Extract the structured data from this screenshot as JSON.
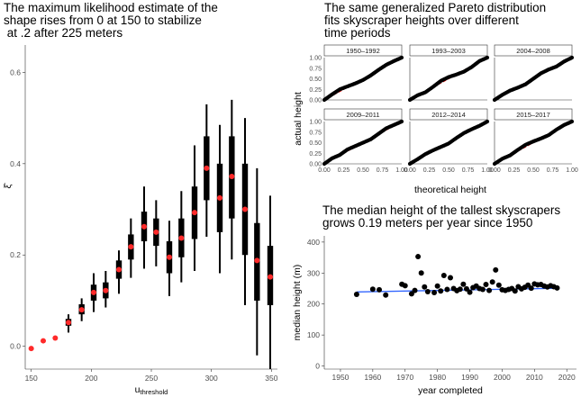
{
  "titles": {
    "left": "The maximum likelihood estimate of the\nshape rises from 0 at 150 to stabilize\n at .2 after 225 meters",
    "qq": "The same generalized Pareto distribution\nfits skyscraper heights over different\ntime periods",
    "median": "The median height of the tallest skyscrapers\ngrows 0.19 meters per year since 1950"
  },
  "colors": {
    "point": "#ff2a2a",
    "bar": "#000000",
    "qq_line": "#ff0000",
    "trend": "#3366ff"
  },
  "chart_data": [
    {
      "type": "scatter",
      "name": "shape-estimate",
      "xlabel_main": "u",
      "xlabel_sub": "threshold",
      "ylabel": "ξ̂",
      "xlim": [
        145,
        355
      ],
      "ylim": [
        -0.05,
        0.66
      ],
      "xticks": [
        150,
        200,
        250,
        300,
        350
      ],
      "yticks": [
        0.0,
        0.2,
        0.4,
        0.6
      ],
      "ytick_labels": [
        "0.0",
        "0.2",
        "0.4",
        "0.6"
      ],
      "points": [
        {
          "x": 150,
          "y": -0.005,
          "lo": null,
          "hi": null,
          "q1": null,
          "q3": null
        },
        {
          "x": 160,
          "y": 0.012,
          "lo": null,
          "hi": null,
          "q1": null,
          "q3": null
        },
        {
          "x": 170,
          "y": 0.018,
          "lo": null,
          "hi": null,
          "q1": null,
          "q3": null
        },
        {
          "x": 181,
          "y": 0.052,
          "lo": 0.03,
          "hi": 0.07,
          "q1": 0.045,
          "q3": 0.06
        },
        {
          "x": 192,
          "y": 0.08,
          "lo": 0.055,
          "hi": 0.105,
          "q1": 0.07,
          "q3": 0.092
        },
        {
          "x": 202,
          "y": 0.118,
          "lo": 0.075,
          "hi": 0.16,
          "q1": 0.1,
          "q3": 0.135
        },
        {
          "x": 212,
          "y": 0.122,
          "lo": 0.085,
          "hi": 0.165,
          "q1": 0.105,
          "q3": 0.14
        },
        {
          "x": 223,
          "y": 0.168,
          "lo": 0.115,
          "hi": 0.21,
          "q1": 0.148,
          "q3": 0.188
        },
        {
          "x": 233,
          "y": 0.218,
          "lo": 0.15,
          "hi": 0.28,
          "q1": 0.19,
          "q3": 0.245
        },
        {
          "x": 244,
          "y": 0.262,
          "lo": 0.17,
          "hi": 0.35,
          "q1": 0.23,
          "q3": 0.295
        },
        {
          "x": 254,
          "y": 0.25,
          "lo": 0.175,
          "hi": 0.32,
          "q1": 0.22,
          "q3": 0.28
        },
        {
          "x": 265,
          "y": 0.195,
          "lo": 0.11,
          "hi": 0.275,
          "q1": 0.16,
          "q3": 0.23
        },
        {
          "x": 275,
          "y": 0.237,
          "lo": 0.14,
          "hi": 0.34,
          "q1": 0.195,
          "q3": 0.28
        },
        {
          "x": 286,
          "y": 0.293,
          "lo": 0.165,
          "hi": 0.44,
          "q1": 0.235,
          "q3": 0.35
        },
        {
          "x": 296,
          "y": 0.39,
          "lo": 0.24,
          "hi": 0.53,
          "q1": 0.32,
          "q3": 0.46
        },
        {
          "x": 307,
          "y": 0.325,
          "lo": 0.16,
          "hi": 0.485,
          "q1": 0.25,
          "q3": 0.4
        },
        {
          "x": 317,
          "y": 0.372,
          "lo": 0.19,
          "hi": 0.54,
          "q1": 0.28,
          "q3": 0.46
        },
        {
          "x": 328,
          "y": 0.3,
          "lo": 0.09,
          "hi": 0.5,
          "q1": 0.2,
          "q3": 0.4
        },
        {
          "x": 338,
          "y": 0.188,
          "lo": -0.02,
          "hi": 0.39,
          "q1": 0.1,
          "q3": 0.27
        },
        {
          "x": 349,
          "y": 0.152,
          "lo": -0.05,
          "hi": 0.33,
          "q1": 0.09,
          "q3": 0.22
        }
      ]
    },
    {
      "type": "scatter",
      "name": "qq-facets",
      "xlabel": "theoretical height",
      "ylabel": "actual height",
      "xlim": [
        0,
        1
      ],
      "ylim": [
        0,
        1
      ],
      "xticks": [
        0.0,
        0.25,
        0.5,
        0.75,
        1.0
      ],
      "xtick_labels": [
        "0.00",
        "0.25",
        "0.50",
        "0.75",
        "1.00"
      ],
      "yticks": [
        0.0,
        0.25,
        0.5,
        0.75,
        1.0
      ],
      "ytick_labels": [
        "0.00",
        "0.25",
        "0.50",
        "0.75",
        "1.00"
      ],
      "panels": [
        {
          "label": "1950–1992",
          "wiggle": [
            0.0,
            0.03,
            0.05,
            0.02,
            -0.01,
            -0.03,
            -0.02,
            0.01,
            0.03,
            0.02,
            0.0
          ]
        },
        {
          "label": "1993–2003",
          "wiggle": [
            0.0,
            0.01,
            -0.02,
            0.01,
            0.05,
            0.04,
            0.0,
            -0.03,
            -0.02,
            0.02,
            0.0
          ]
        },
        {
          "label": "2004–2008",
          "wiggle": [
            0.0,
            0.02,
            0.02,
            -0.01,
            -0.03,
            0.0,
            0.03,
            0.02,
            -0.01,
            0.01,
            0.0
          ]
        },
        {
          "label": "2009–2011",
          "wiggle": [
            0.0,
            0.03,
            0.01,
            0.04,
            0.02,
            0.0,
            -0.02,
            0.01,
            0.04,
            0.02,
            0.0
          ]
        },
        {
          "label": "2012–2014",
          "wiggle": [
            0.0,
            0.01,
            0.03,
            0.02,
            0.0,
            -0.02,
            0.01,
            0.03,
            0.02,
            0.0,
            0.0
          ]
        },
        {
          "label": "2015–2017",
          "wiggle": [
            0.0,
            0.02,
            0.0,
            0.03,
            0.05,
            0.03,
            0.0,
            -0.02,
            0.01,
            0.02,
            0.0
          ]
        }
      ]
    },
    {
      "type": "scatter",
      "name": "median-height",
      "xlabel": "year completed",
      "ylabel": "median height (m)",
      "xlim": [
        1945,
        2023
      ],
      "ylim": [
        -10,
        420
      ],
      "xticks": [
        1950,
        1960,
        1970,
        1980,
        1990,
        2000,
        2010,
        2020
      ],
      "yticks": [
        0,
        100,
        200,
        300,
        400
      ],
      "trend": {
        "x": [
          1955,
          2017
        ],
        "y": [
          239,
          251
        ]
      },
      "points": [
        {
          "x": 1955,
          "y": 231
        },
        {
          "x": 1960,
          "y": 248
        },
        {
          "x": 1962,
          "y": 246
        },
        {
          "x": 1964,
          "y": 229
        },
        {
          "x": 1969,
          "y": 264
        },
        {
          "x": 1970,
          "y": 259
        },
        {
          "x": 1972,
          "y": 233
        },
        {
          "x": 1973,
          "y": 244
        },
        {
          "x": 1974,
          "y": 353
        },
        {
          "x": 1975,
          "y": 300
        },
        {
          "x": 1976,
          "y": 255
        },
        {
          "x": 1977,
          "y": 240
        },
        {
          "x": 1979,
          "y": 237
        },
        {
          "x": 1980,
          "y": 258
        },
        {
          "x": 1981,
          "y": 242
        },
        {
          "x": 1982,
          "y": 292
        },
        {
          "x": 1983,
          "y": 247
        },
        {
          "x": 1984,
          "y": 285
        },
        {
          "x": 1985,
          "y": 250
        },
        {
          "x": 1986,
          "y": 243
        },
        {
          "x": 1987,
          "y": 248
        },
        {
          "x": 1988,
          "y": 264
        },
        {
          "x": 1989,
          "y": 249
        },
        {
          "x": 1990,
          "y": 238
        },
        {
          "x": 1991,
          "y": 253
        },
        {
          "x": 1992,
          "y": 258
        },
        {
          "x": 1993,
          "y": 250
        },
        {
          "x": 1994,
          "y": 247
        },
        {
          "x": 1995,
          "y": 263
        },
        {
          "x": 1996,
          "y": 244
        },
        {
          "x": 1997,
          "y": 271
        },
        {
          "x": 1998,
          "y": 310
        },
        {
          "x": 1999,
          "y": 261
        },
        {
          "x": 2000,
          "y": 246
        },
        {
          "x": 2001,
          "y": 244
        },
        {
          "x": 2002,
          "y": 247
        },
        {
          "x": 2003,
          "y": 250
        },
        {
          "x": 2004,
          "y": 242
        },
        {
          "x": 2005,
          "y": 256
        },
        {
          "x": 2006,
          "y": 249
        },
        {
          "x": 2007,
          "y": 254
        },
        {
          "x": 2008,
          "y": 261
        },
        {
          "x": 2009,
          "y": 251
        },
        {
          "x": 2010,
          "y": 265
        },
        {
          "x": 2011,
          "y": 262
        },
        {
          "x": 2012,
          "y": 263
        },
        {
          "x": 2013,
          "y": 258
        },
        {
          "x": 2014,
          "y": 255
        },
        {
          "x": 2015,
          "y": 259
        },
        {
          "x": 2016,
          "y": 256
        },
        {
          "x": 2017,
          "y": 252
        }
      ]
    }
  ]
}
